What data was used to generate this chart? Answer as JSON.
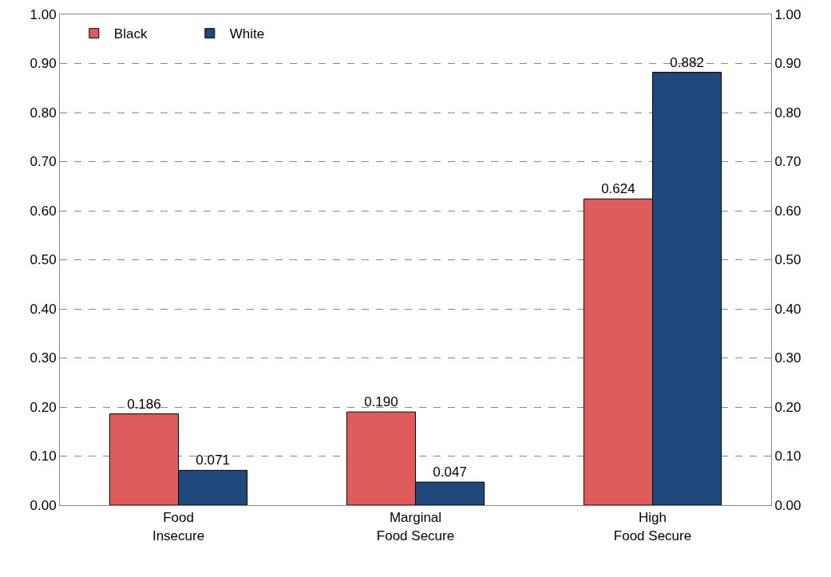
{
  "chart_data": {
    "type": "bar",
    "categories": [
      "Food Insecure",
      "Marginal Food Secure",
      "High Food Secure"
    ],
    "series": [
      {
        "name": "Black",
        "color": "#e05c5c",
        "values": [
          0.186,
          0.19,
          0.624
        ],
        "value_labels": [
          "0.186",
          "0.190",
          "0.624"
        ]
      },
      {
        "name": "White",
        "color": "#1f497d",
        "values": [
          0.071,
          0.047,
          0.882
        ],
        "value_labels": [
          "0.071",
          "0.047",
          "0.882"
        ]
      }
    ],
    "ylim": [
      0,
      1
    ],
    "yticks": [
      {
        "value": 0,
        "label": "0.00"
      },
      {
        "value": 0.1,
        "label": "0.10"
      },
      {
        "value": 0.2,
        "label": "0.20"
      },
      {
        "value": 0.3,
        "label": "0.30"
      },
      {
        "value": 0.4,
        "label": "0.40"
      },
      {
        "value": 0.5,
        "label": "0.50"
      },
      {
        "value": 0.6,
        "label": "0.60"
      },
      {
        "value": 0.7,
        "label": "0.70"
      },
      {
        "value": 0.8,
        "label": "0.80"
      },
      {
        "value": 0.9,
        "label": "0.90"
      },
      {
        "value": 1,
        "label": "1.00"
      }
    ],
    "y2lim": [
      0,
      1
    ],
    "y2ticks": [
      {
        "value": 0,
        "label": "0.00"
      },
      {
        "value": 0.1,
        "label": "0.10"
      },
      {
        "value": 0.2,
        "label": "0.20"
      },
      {
        "value": 0.3,
        "label": "0.30"
      },
      {
        "value": 0.4,
        "label": "0.40"
      },
      {
        "value": 0.5,
        "label": "0.50"
      },
      {
        "value": 0.6,
        "label": "0.60"
      },
      {
        "value": 0.7,
        "label": "0.70"
      },
      {
        "value": 0.8,
        "label": "0.80"
      },
      {
        "value": 0.9,
        "label": "0.90"
      },
      {
        "value": 1,
        "label": "1.00"
      }
    ],
    "grid": "y",
    "legend": "top left"
  }
}
